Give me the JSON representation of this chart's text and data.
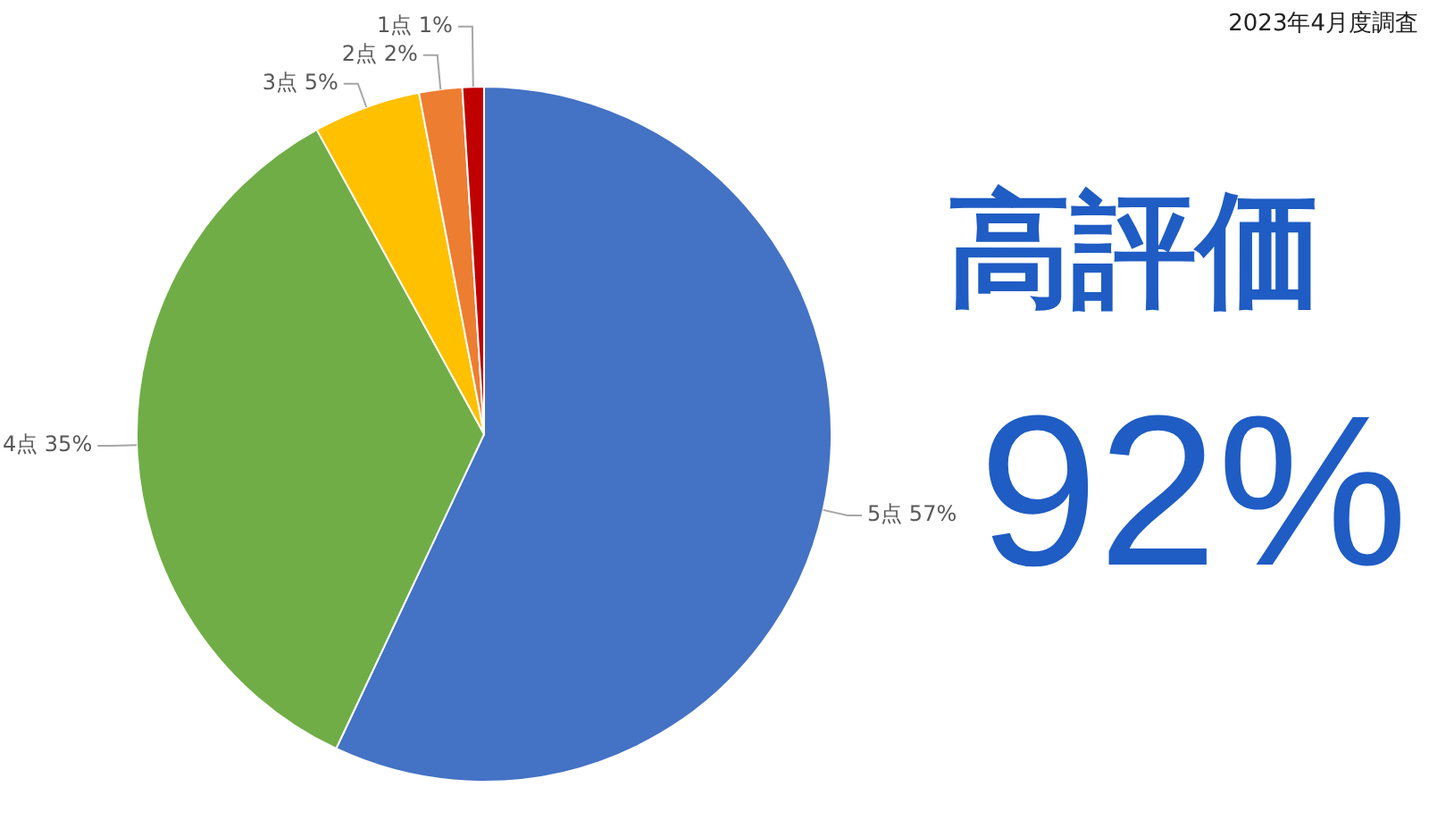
{
  "chart_data": {
    "type": "pie",
    "categories": [
      "5点",
      "4点",
      "3点",
      "2点",
      "1点"
    ],
    "values": [
      57,
      35,
      5,
      2,
      1
    ],
    "colors": [
      "#4472c4",
      "#70ad47",
      "#ffc000",
      "#ed7d31",
      "#c00000"
    ],
    "value_labels": [
      "57%",
      "35%",
      "5%",
      "2%",
      "1%"
    ],
    "annotations": [
      "2023年4月度調査",
      "高評価",
      "92%"
    ]
  }
}
